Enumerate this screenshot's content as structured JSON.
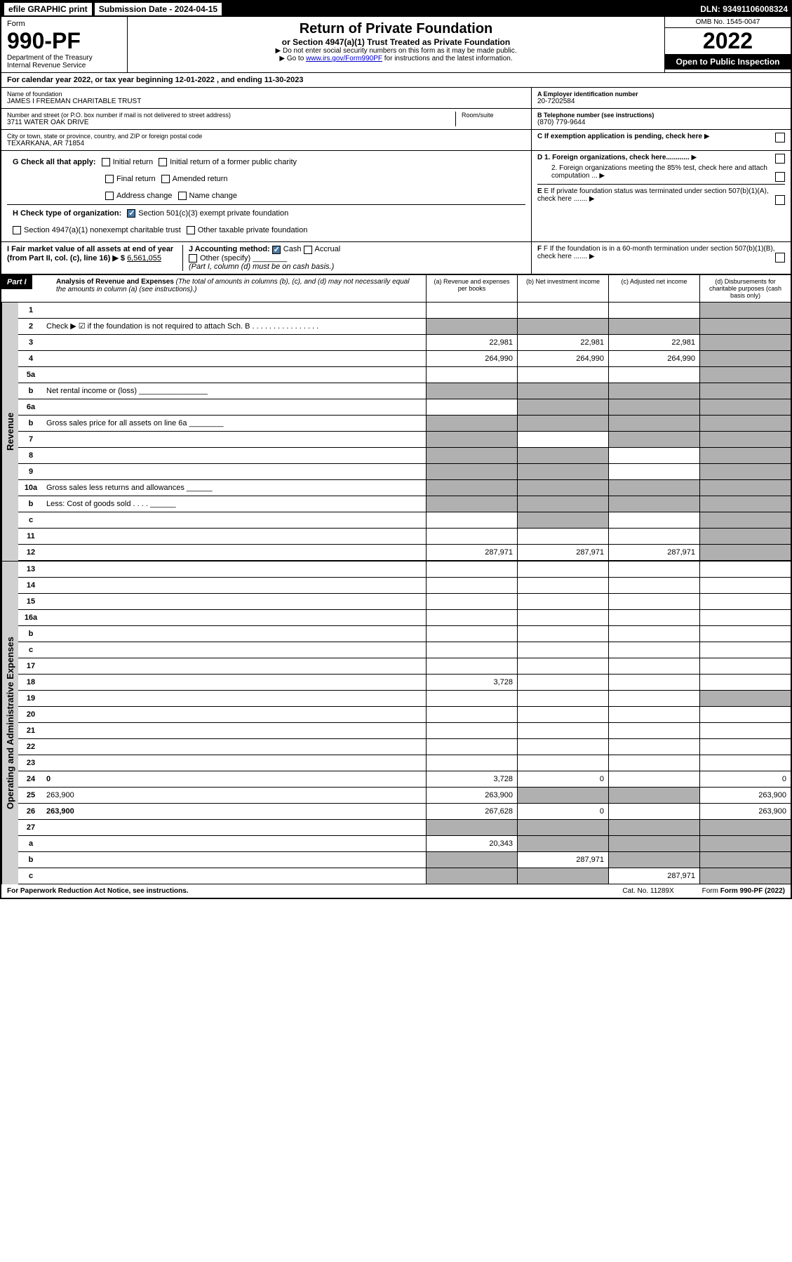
{
  "top": {
    "efile": "efile GRAPHIC print",
    "submission": "Submission Date - 2024-04-15",
    "dln": "DLN: 93491106008324"
  },
  "header": {
    "form": "Form",
    "form_no": "990-PF",
    "dept": "Department of the Treasury",
    "irs": "Internal Revenue Service",
    "title": "Return of Private Foundation",
    "subtitle": "or Section 4947(a)(1) Trust Treated as Private Foundation",
    "note1": "▶ Do not enter social security numbers on this form as it may be made public.",
    "note2": "▶ Go to ",
    "link": "www.irs.gov/Form990PF",
    "note3": " for instructions and the latest information.",
    "omb": "OMB No. 1545-0047",
    "year": "2022",
    "open": "Open to Public Inspection"
  },
  "cal_year": "For calendar year 2022, or tax year beginning 12-01-2022            , and ending 11-30-2023",
  "info": {
    "name_label": "Name of foundation",
    "name": "JAMES I FREEMAN CHARITABLE TRUST",
    "addr_label": "Number and street (or P.O. box number if mail is not delivered to street address)",
    "addr": "3711 WATER OAK DRIVE",
    "room_label": "Room/suite",
    "city_label": "City or town, state or province, country, and ZIP or foreign postal code",
    "city": "TEXARKANA, AR  71854",
    "ein_label": "A Employer identification number",
    "ein": "20-7202584",
    "tel_label": "B Telephone number (see instructions)",
    "tel": "(870) 779-9644",
    "c": "C If exemption application is pending, check here",
    "d1": "D 1. Foreign organizations, check here............",
    "d2": "2. Foreign organizations meeting the 85% test, check here and attach computation ...",
    "e": "E If private foundation status was terminated under section 507(b)(1)(A), check here .......",
    "f": "F If the foundation is in a 60-month termination under section 507(b)(1)(B), check here .......",
    "g": "G Check all that apply:",
    "g_opts": [
      "Initial return",
      "Initial return of a former public charity",
      "Final return",
      "Amended return",
      "Address change",
      "Name change"
    ],
    "h": "H Check type of organization:",
    "h1": "Section 501(c)(3) exempt private foundation",
    "h2": "Section 4947(a)(1) nonexempt charitable trust",
    "h3": "Other taxable private foundation",
    "i": "I Fair market value of all assets at end of year (from Part II, col. (c), line 16) ▶ $ ",
    "i_val": "6,561,055",
    "j": "J Accounting method:",
    "j_cash": "Cash",
    "j_accrual": "Accrual",
    "j_other": "Other (specify)",
    "j_note": "(Part I, column (d) must be on cash basis.)"
  },
  "part1": {
    "label": "Part I",
    "title": "Analysis of Revenue and Expenses",
    "title_note": " (The total of amounts in columns (b), (c), and (d) may not necessarily equal the amounts in column (a) (see instructions).)",
    "colA": "(a) Revenue and expenses per books",
    "colB": "(b) Net investment income",
    "colC": "(c) Adjusted net income",
    "colD": "(d) Disbursements for charitable purposes (cash basis only)"
  },
  "revenue_label": "Revenue",
  "expenses_label": "Operating and Administrative Expenses",
  "rows": [
    {
      "n": "1",
      "d": "",
      "a": "",
      "b": "",
      "c": "",
      "dgrey": true
    },
    {
      "n": "2",
      "d": "Check ▶ ☑ if the foundation is not required to attach Sch. B  . . . . . . . . . . . . . . . .",
      "nocols": true
    },
    {
      "n": "3",
      "d": "",
      "a": "22,981",
      "b": "22,981",
      "c": "22,981",
      "dgrey": true
    },
    {
      "n": "4",
      "d": "",
      "a": "264,990",
      "b": "264,990",
      "c": "264,990",
      "dgrey": true
    },
    {
      "n": "5a",
      "d": "",
      "a": "",
      "b": "",
      "c": "",
      "dgrey": true
    },
    {
      "n": "b",
      "d": "Net rental income or (loss) ________________",
      "nocols": true
    },
    {
      "n": "6a",
      "d": "",
      "a": "",
      "b": "",
      "bgrey": true,
      "c": "",
      "cgrey": true,
      "dgrey": true
    },
    {
      "n": "b",
      "d": "Gross sales price for all assets on line 6a ________",
      "nocols": true
    },
    {
      "n": "7",
      "d": "",
      "a": "",
      "agrey": true,
      "b": "",
      "c": "",
      "cgrey": true,
      "dgrey": true
    },
    {
      "n": "8",
      "d": "",
      "a": "",
      "agrey": true,
      "b": "",
      "bgrey": true,
      "c": "",
      "dgrey": true
    },
    {
      "n": "9",
      "d": "",
      "a": "",
      "agrey": true,
      "b": "",
      "bgrey": true,
      "c": "",
      "dgrey": true
    },
    {
      "n": "10a",
      "d": "Gross sales less returns and allowances  ______",
      "nocols": true
    },
    {
      "n": "b",
      "d": "Less: Cost of goods sold  . . . .  ______",
      "nocols": true
    },
    {
      "n": "c",
      "d": "",
      "a": "",
      "b": "",
      "bgrey": true,
      "c": "",
      "dgrey": true
    },
    {
      "n": "11",
      "d": "",
      "a": "",
      "b": "",
      "c": "",
      "dgrey": true
    },
    {
      "n": "12",
      "d": "",
      "bold": true,
      "a": "287,971",
      "b": "287,971",
      "c": "287,971",
      "dgrey": true
    }
  ],
  "exp_rows": [
    {
      "n": "13",
      "d": "",
      "a": "",
      "b": "",
      "c": ""
    },
    {
      "n": "14",
      "d": "",
      "a": "",
      "b": "",
      "c": ""
    },
    {
      "n": "15",
      "d": "",
      "a": "",
      "b": "",
      "c": ""
    },
    {
      "n": "16a",
      "d": "",
      "a": "",
      "b": "",
      "c": ""
    },
    {
      "n": "b",
      "d": "",
      "a": "",
      "b": "",
      "c": ""
    },
    {
      "n": "c",
      "d": "",
      "a": "",
      "b": "",
      "c": ""
    },
    {
      "n": "17",
      "d": "",
      "a": "",
      "b": "",
      "c": ""
    },
    {
      "n": "18",
      "d": "",
      "a": "3,728",
      "b": "",
      "c": ""
    },
    {
      "n": "19",
      "d": "",
      "a": "",
      "b": "",
      "c": "",
      "dgrey": true
    },
    {
      "n": "20",
      "d": "",
      "a": "",
      "b": "",
      "c": ""
    },
    {
      "n": "21",
      "d": "",
      "a": "",
      "b": "",
      "c": ""
    },
    {
      "n": "22",
      "d": "",
      "a": "",
      "b": "",
      "c": ""
    },
    {
      "n": "23",
      "d": "",
      "a": "",
      "b": "",
      "c": ""
    },
    {
      "n": "24",
      "d": "0",
      "bold": true,
      "a": "3,728",
      "b": "0",
      "c": ""
    },
    {
      "n": "25",
      "d": "263,900",
      "a": "263,900",
      "b": "",
      "bgrey": true,
      "c": "",
      "cgrey": true
    },
    {
      "n": "26",
      "d": "263,900",
      "bold": true,
      "a": "267,628",
      "b": "0",
      "c": ""
    },
    {
      "n": "27",
      "d": "",
      "a": "",
      "agrey": true,
      "b": "",
      "bgrey": true,
      "c": "",
      "cgrey": true,
      "dgrey": true
    },
    {
      "n": "a",
      "d": "",
      "bold": true,
      "a": "20,343",
      "b": "",
      "bgrey": true,
      "c": "",
      "cgrey": true,
      "dgrey": true
    },
    {
      "n": "b",
      "d": "",
      "bold": true,
      "a": "",
      "agrey": true,
      "b": "287,971",
      "c": "",
      "cgrey": true,
      "dgrey": true
    },
    {
      "n": "c",
      "d": "",
      "bold": true,
      "a": "",
      "agrey": true,
      "b": "",
      "bgrey": true,
      "c": "287,971",
      "dgrey": true
    }
  ],
  "footer": {
    "left": "For Paperwork Reduction Act Notice, see instructions.",
    "mid": "Cat. No. 11289X",
    "right": "Form 990-PF (2022)"
  }
}
